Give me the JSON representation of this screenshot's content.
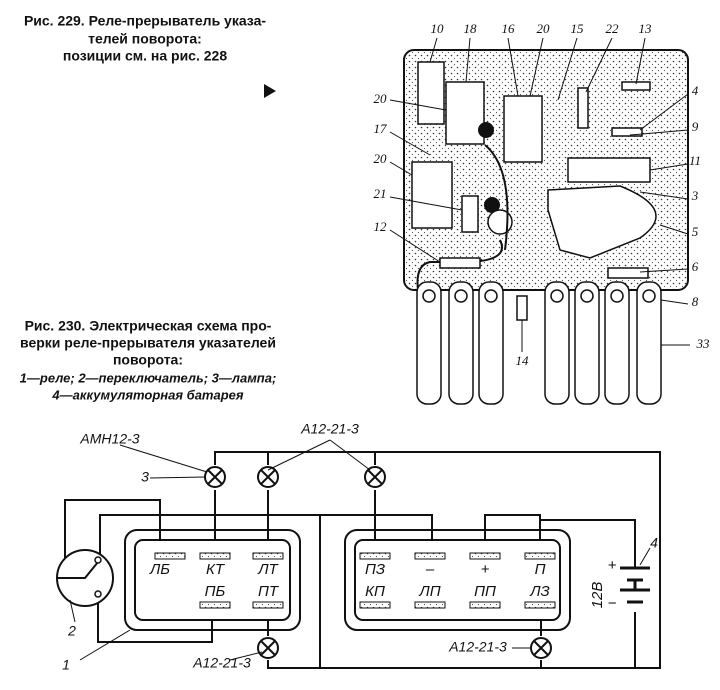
{
  "figure_229": {
    "caption": [
      "Рис. 229. Реле-прерыватель указа-",
      "телей поворота:",
      "позиции см. на рис. 228"
    ],
    "callouts": [
      "10",
      "18",
      "16",
      "20",
      "15",
      "22",
      "13",
      "4",
      "9",
      "11",
      "3",
      "5",
      "6",
      "8",
      "33",
      "20",
      "17",
      "20",
      "21",
      "12",
      "14"
    ]
  },
  "figure_230": {
    "caption": [
      "Рис. 230. Электрическая схема про-",
      "верки реле-прерывателя указателей",
      "поворота:"
    ],
    "legend": [
      "1—реле; 2—переключатель; 3—лампа;",
      "4—аккумуляторная батарея"
    ],
    "lamp_labels": [
      "АМН12-3",
      "А12-21-3",
      "А12-21-3",
      "А12-21-3"
    ],
    "callouts": [
      "3",
      "2",
      "1",
      "4"
    ],
    "terminals": [
      "ЛБ",
      "КТ",
      "ЛТ",
      "ПБ",
      "ПТ",
      "ПЗ",
      "–",
      "+",
      "П",
      "КП",
      "ЛП",
      "ПП",
      "ЛЗ"
    ],
    "battery": [
      "12В",
      "+",
      "−"
    ]
  }
}
